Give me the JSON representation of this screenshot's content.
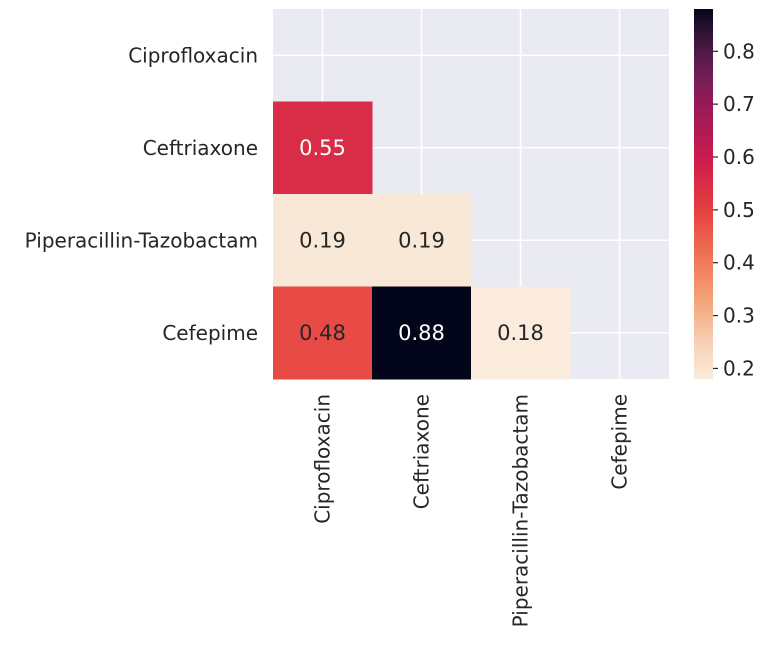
{
  "chart_data": {
    "type": "heatmap",
    "title": "",
    "xlabel": "",
    "ylabel": "",
    "rows": [
      "Ciprofloxacin",
      "Ceftriaxone",
      "Piperacillin-Tazobactam",
      "Cefepime"
    ],
    "columns": [
      "Ciprofloxacin",
      "Ceftriaxone",
      "Piperacillin-Tazobactam",
      "Cefepime"
    ],
    "values": [
      [
        null,
        null,
        null,
        null
      ],
      [
        0.55,
        null,
        null,
        null
      ],
      [
        0.19,
        0.19,
        null,
        null
      ],
      [
        0.48,
        0.88,
        0.18,
        null
      ]
    ],
    "cell_labels": [
      [
        null,
        null,
        null,
        null
      ],
      [
        "0.55",
        null,
        null,
        null
      ],
      [
        "0.19",
        "0.19",
        null,
        null
      ],
      [
        "0.48",
        "0.88",
        "0.18",
        null
      ]
    ],
    "masked": "upper triangle including diagonal",
    "colormap": "rocket_r",
    "colorbar": {
      "min": 0.18,
      "max": 0.88,
      "ticks": [
        0.2,
        0.3,
        0.4,
        0.5,
        0.6,
        0.7,
        0.8
      ],
      "tick_labels": [
        "0.2",
        "0.3",
        "0.4",
        "0.5",
        "0.6",
        "0.7",
        "0.8"
      ],
      "placement": "right"
    },
    "grid": true,
    "colors": {
      "background": "#EAEAF2",
      "grid": "#FFFFFF",
      "text": "#262626"
    }
  }
}
